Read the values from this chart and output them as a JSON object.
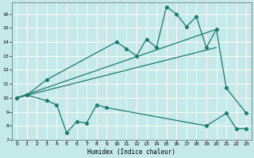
{
  "xlabel": "Humidex (Indice chaleur)",
  "xlim": [
    -0.5,
    23.5
  ],
  "ylim": [
    7,
    16.8
  ],
  "yticks": [
    7,
    8,
    9,
    10,
    11,
    12,
    13,
    14,
    15,
    16
  ],
  "xticks": [
    0,
    1,
    2,
    3,
    4,
    5,
    6,
    7,
    8,
    9,
    10,
    11,
    12,
    13,
    14,
    15,
    16,
    17,
    18,
    19,
    20,
    21,
    22,
    23
  ],
  "line_color": "#1a7a6e",
  "bg_color": "#c5e8e8",
  "grid_color": "#ffffff",
  "top_line_x": [
    0,
    1,
    3,
    10,
    11,
    12,
    13,
    14,
    15,
    16,
    17,
    18,
    19,
    20,
    21,
    23
  ],
  "top_line_y": [
    10.0,
    10.2,
    11.3,
    14.0,
    13.5,
    13.0,
    14.2,
    13.6,
    16.5,
    16.0,
    15.1,
    15.8,
    13.6,
    14.9,
    10.7,
    8.9
  ],
  "bottom_line_x": [
    0,
    1,
    3,
    4,
    5,
    6,
    7,
    8,
    9,
    19,
    21,
    22,
    23
  ],
  "bottom_line_y": [
    10.0,
    10.2,
    9.8,
    9.5,
    7.5,
    8.3,
    8.2,
    9.5,
    9.3,
    8.0,
    8.9,
    7.8,
    7.8
  ],
  "trend1_x": [
    0,
    20
  ],
  "trend1_y": [
    10.0,
    14.9
  ],
  "trend2_x": [
    0,
    20
  ],
  "trend2_y": [
    10.0,
    13.6
  ]
}
